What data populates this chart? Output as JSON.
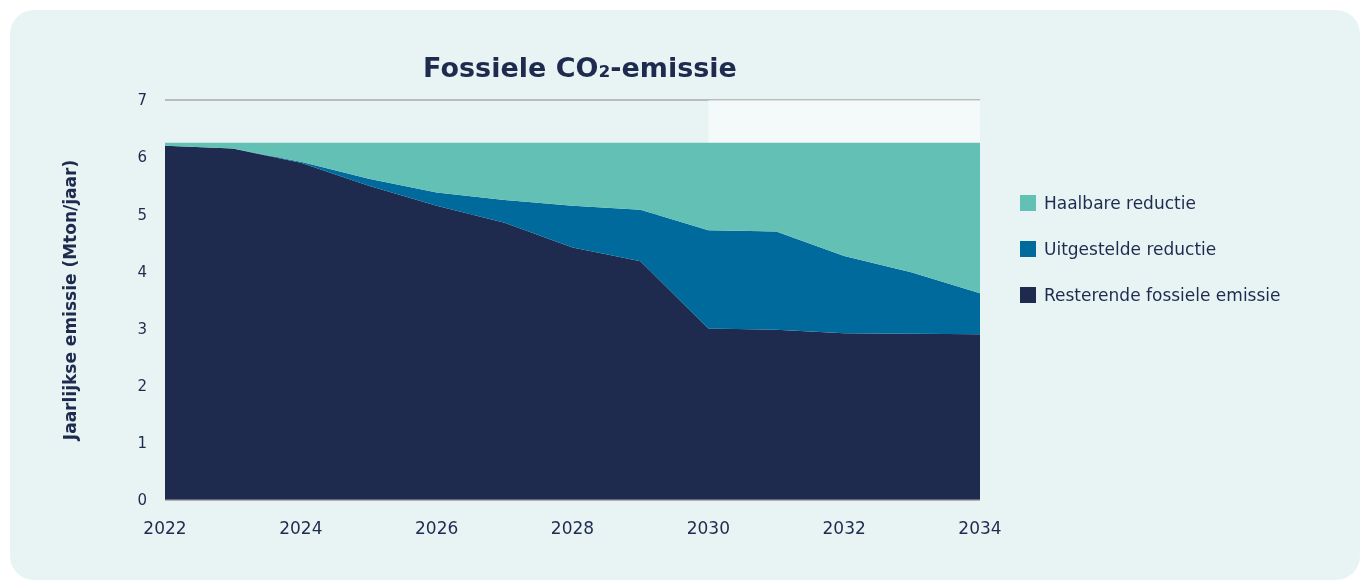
{
  "chart_data": {
    "type": "area",
    "title": "Fossiele CO₂-emissie",
    "ylabel": "Jaarlijkse emissie (Mton/jaar)",
    "stacked": true,
    "x": [
      2022,
      2023,
      2024,
      2025,
      2026,
      2027,
      2028,
      2029,
      2030,
      2031,
      2032,
      2033,
      2034
    ],
    "series": [
      {
        "name": "Resterende fossiele emissie",
        "color": "#1e2b4f",
        "values": [
          6.2,
          6.15,
          5.9,
          5.5,
          5.15,
          4.85,
          4.42,
          4.18,
          3.0,
          2.98,
          2.92,
          2.91,
          2.9
        ]
      },
      {
        "name": "Uitgestelde reductie",
        "color": "#006a9d",
        "values": [
          0,
          0,
          0.02,
          0.12,
          0.23,
          0.4,
          0.73,
          0.9,
          1.72,
          1.72,
          1.35,
          1.07,
          0.72
        ]
      },
      {
        "name": "Haalbare reductie",
        "color": "#63c0b5",
        "values": [
          0.05,
          0.1,
          0.33,
          0.63,
          0.87,
          1.0,
          1.1,
          1.17,
          1.53,
          1.55,
          1.98,
          2.27,
          2.63
        ]
      }
    ],
    "bands": [
      {
        "axis": "x",
        "from": 2030,
        "to": 2034,
        "color": "#ffffff"
      }
    ],
    "xlim": [
      2022,
      2034
    ],
    "xticks": [
      2022,
      2024,
      2026,
      2028,
      2030,
      2032,
      2034
    ],
    "ylim": [
      0,
      7
    ],
    "yticks": [
      0,
      1,
      2,
      3,
      4,
      5,
      6,
      7
    ],
    "grid": "y",
    "legend": "right"
  }
}
